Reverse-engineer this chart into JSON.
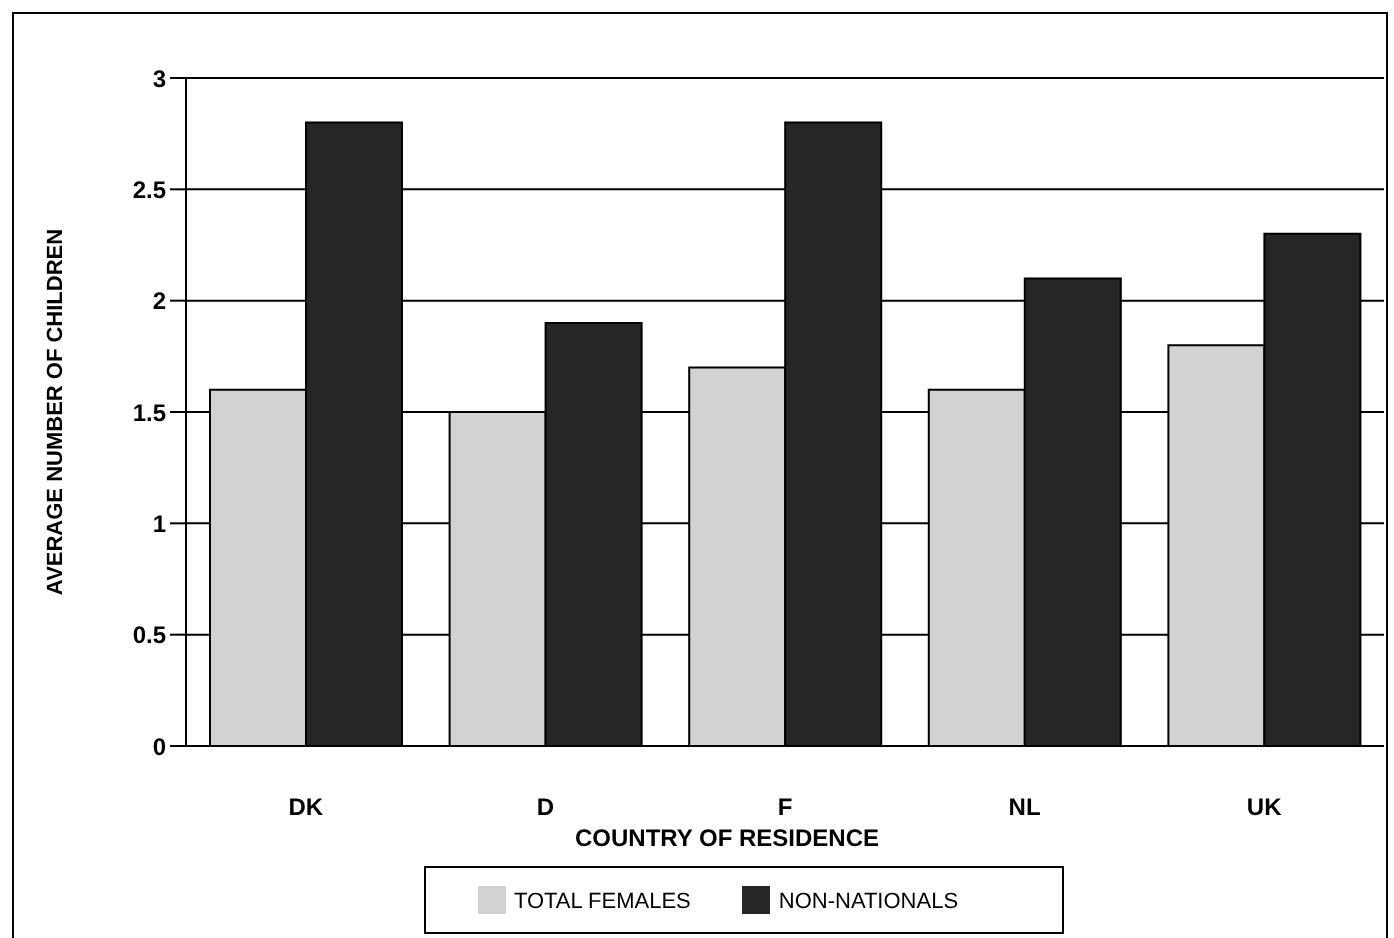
{
  "chart_data": {
    "type": "bar",
    "xlabel": "COUNTRY OF RESIDENCE",
    "ylabel": "AVERAGE NUMBER OF CHILDREN",
    "categories": [
      "DK",
      "D",
      "F",
      "NL",
      "UK"
    ],
    "series": [
      {
        "name": "TOTAL FEMALES",
        "color": "#d2d2d2",
        "values": [
          1.6,
          1.5,
          1.7,
          1.6,
          1.8
        ]
      },
      {
        "name": "NON-NATIONALS",
        "color": "#262626",
        "values": [
          2.8,
          1.9,
          2.8,
          2.1,
          2.3
        ]
      }
    ],
    "ylim": [
      0,
      3
    ],
    "yticks": [
      0,
      0.5,
      1,
      1.5,
      2,
      2.5,
      3
    ],
    "grid": "y",
    "legend": "bottom"
  }
}
